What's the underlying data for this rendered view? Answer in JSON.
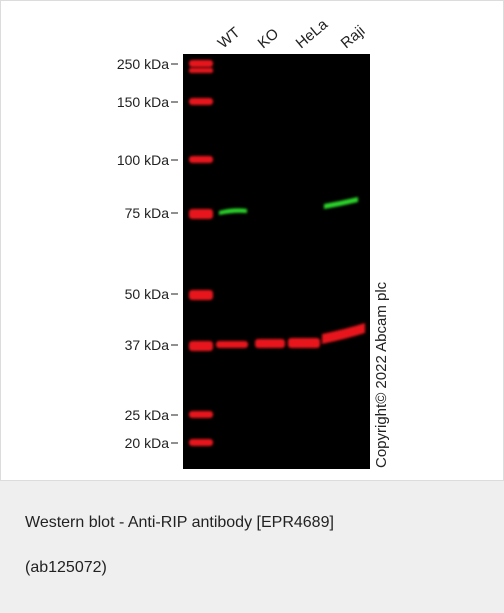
{
  "blot": {
    "markers": [
      "250 kDa",
      "150 kDa",
      "100 kDa",
      "75 kDa",
      "50 kDa",
      "37 kDa",
      "25 kDa",
      "20 kDa"
    ],
    "lanes": [
      "WT",
      "KO",
      "HeLa",
      "Raji"
    ],
    "copyright": "Copyright© 2022 Abcam plc"
  },
  "caption": {
    "lines": [
      "Western blot - Anti-RIP antibody [EPR4689]",
      "(ab125072)"
    ]
  }
}
